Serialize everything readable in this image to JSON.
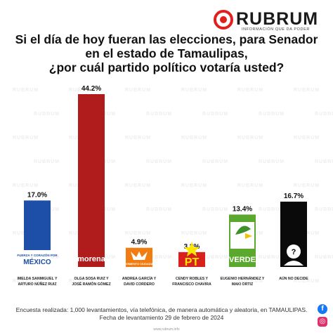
{
  "brand": {
    "name": "RUBRUM",
    "tagline": "INFORMACIÓN QUE DA PODER",
    "watermark": "RUBRUM",
    "accent_color": "#e0201e"
  },
  "question": {
    "lines": [
      "Si el día de hoy fueran las elecciones, para Senador",
      "en el estado de Tamaulipas,",
      "¿por cuál partido político votaría usted?"
    ]
  },
  "chart_data": {
    "type": "bar",
    "ylim": [
      0,
      50
    ],
    "grid": false,
    "categories": [
      [
        "IMELDA SANMIGUEL Y",
        "ARTURO NÚÑEZ RUIZ"
      ],
      [
        "OLGA SOSA RUIZ Y",
        "JOSÉ RAMÓN GÓMEZ"
      ],
      [
        "ANDREA GARCÍA Y",
        "DAVID CORDERO"
      ],
      [
        "CENDY ROBLES Y",
        "FRANCISCO CHAVIRA"
      ],
      [
        "EUGENIO HERNÁNDEZ Y",
        "MAKI ORTIZ"
      ],
      [
        "AÚN NO DECIDE"
      ]
    ],
    "values": [
      17.0,
      44.2,
      4.9,
      3.8,
      13.4,
      16.7
    ],
    "value_labels": [
      "17.0%",
      "44.2%",
      "4.9%",
      "3.8%",
      "13.4%",
      "16.7%"
    ],
    "party_logos": [
      {
        "text": "FUERZA Y CORAZÓN POR MÉXICO",
        "icon": "pri-pan-prd-coalition-logo"
      },
      {
        "text": "morena",
        "icon": "morena-logo"
      },
      {
        "text": "MOVIMIENTO CIUDADANO",
        "icon": "movimiento-ciudadano-logo"
      },
      {
        "text": "PT",
        "icon": "pt-star-logo"
      },
      {
        "text": "VERDE",
        "icon": "partido-verde-logo"
      },
      {
        "text": "?",
        "icon": "undecided-person-icon"
      }
    ],
    "colors": [
      "#1d4fa8",
      "#b01c1c",
      "#f07c12",
      "#d8201c",
      "#5aa82d",
      "#0a0a0a"
    ]
  },
  "footer": {
    "line1": "Encuesta realizada: 1,000 levantamientos, vía telefónica, de manera automática y aleatoria, en TAMAULIPAS.",
    "line2": "Fecha de levantamiento 29 de febrero de 2024",
    "url": "www.rubrum.info"
  },
  "social": {
    "facebook_icon": "facebook-icon",
    "instagram_icon": "instagram-icon"
  }
}
